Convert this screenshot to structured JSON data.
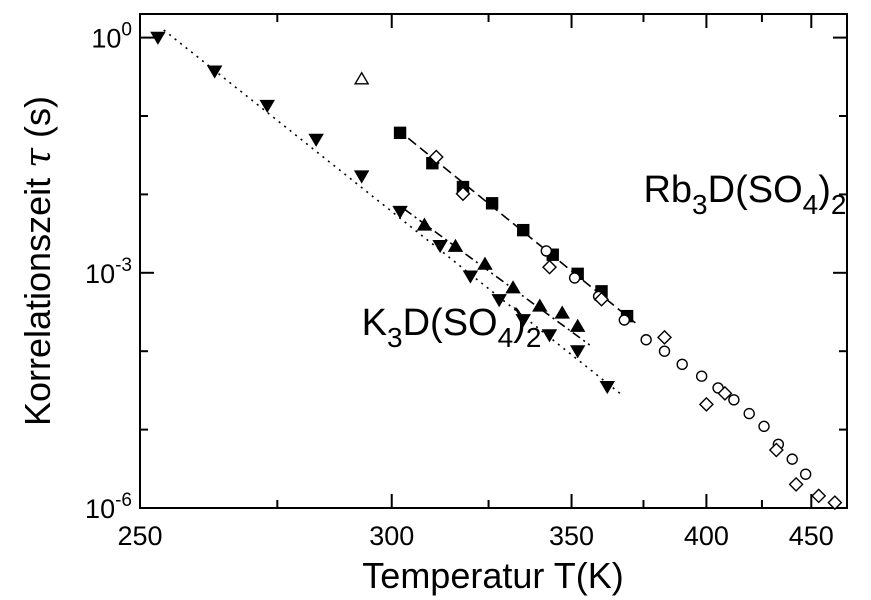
{
  "chart_data": {
    "type": "scatter",
    "x_scale": "reciprocal",
    "y_scale": "log",
    "xlabel": "Temperatur T(K)",
    "ylabel_main": "Korrelationszeit",
    "ylabel_symbol": "τ",
    "ylabel_unit": "(s)",
    "xlim": [
      250,
      470
    ],
    "ylim": [
      1e-06,
      2
    ],
    "xticks_major": [
      250,
      300,
      350,
      400,
      450
    ],
    "xticks_minor": [
      275,
      325,
      375,
      425
    ],
    "yticks_major": [
      {
        "value": 1,
        "base": "10",
        "exp": "0"
      },
      {
        "value": 0.001,
        "base": "10",
        "exp": "-3"
      },
      {
        "value": 1e-06,
        "base": "10",
        "exp": "-6"
      }
    ],
    "yticks_minor": [
      0.1,
      0.01,
      0.0001,
      1e-05
    ],
    "grid": false,
    "annotations": [
      {
        "id": "rb",
        "base": "Rb",
        "sub1": "3",
        "mid": "D(SO",
        "sub2": "4",
        "close": ")",
        "sub3": "2",
        "T": 375,
        "tau": 0.008
      },
      {
        "id": "k",
        "base": "K",
        "sub1": "3",
        "mid": "D(SO",
        "sub2": "4",
        "close": ")",
        "sub3": "2",
        "T": 293,
        "tau": 0.00016
      }
    ],
    "series": [
      {
        "marker": "triangle-down-filled",
        "values": [
          [
            253,
            1.0
          ],
          [
            263,
            0.37
          ],
          [
            273,
            0.135
          ],
          [
            283,
            0.05
          ],
          [
            293,
            0.017
          ],
          [
            302,
            0.006
          ],
          [
            312,
            0.0022
          ],
          [
            320,
            0.0009
          ],
          [
            328,
            0.00045
          ],
          [
            335,
            0.00025
          ],
          [
            343,
            0.00016
          ],
          [
            352,
            0.0001
          ],
          [
            362,
            3.5e-05
          ]
        ]
      },
      {
        "marker": "triangle-up-filled",
        "values": [
          [
            308,
            0.0041
          ],
          [
            316,
            0.0022
          ],
          [
            324,
            0.0013
          ],
          [
            332,
            0.00065
          ],
          [
            340,
            0.00038
          ],
          [
            347,
            0.00031
          ],
          [
            352,
            0.00021
          ]
        ]
      },
      {
        "marker": "triangle-up-open",
        "values": [
          [
            293,
            0.3
          ]
        ]
      },
      {
        "marker": "square-filled",
        "values": [
          [
            302,
            0.061
          ],
          [
            310,
            0.025
          ],
          [
            318,
            0.0124
          ],
          [
            326,
            0.0077
          ],
          [
            335,
            0.0035
          ],
          [
            344,
            0.0017
          ],
          [
            352,
            0.00097
          ],
          [
            360,
            0.00058
          ],
          [
            369,
            0.00028
          ]
        ]
      },
      {
        "marker": "circle-open",
        "values": [
          [
            342,
            0.0019
          ],
          [
            351,
            0.00086
          ],
          [
            359,
            0.0005
          ],
          [
            368,
            0.00025
          ],
          [
            376,
            0.00014
          ],
          [
            383,
            0.0001
          ],
          [
            390,
            6.8e-05
          ],
          [
            398,
            4.8e-05
          ],
          [
            405,
            3.4e-05
          ],
          [
            412,
            2.4e-05
          ],
          [
            419,
            1.6e-05
          ],
          [
            426,
            1.1e-05
          ],
          [
            433,
            6.5e-06
          ],
          [
            440,
            4.2e-06
          ],
          [
            447,
            2.7e-06
          ]
        ]
      },
      {
        "marker": "diamond-open",
        "values": [
          [
            311,
            0.03
          ],
          [
            318,
            0.0102
          ],
          [
            343,
            0.00118
          ],
          [
            360,
            0.00046
          ],
          [
            383,
            0.00015
          ],
          [
            400,
            2.1e-05
          ],
          [
            408,
            2.9e-05
          ],
          [
            432,
            5.5e-06
          ],
          [
            442,
            2e-06
          ],
          [
            454,
            1.43e-06
          ],
          [
            463,
            1.17e-06
          ]
        ]
      }
    ],
    "fit_lines": [
      {
        "style": "dotted",
        "from": [
          254,
          1.25
        ],
        "to": [
          367,
          2.8e-05
        ]
      },
      {
        "style": "dashed",
        "from": [
          304,
          0.052
        ],
        "to": [
          372,
          0.00023
        ]
      },
      {
        "style": "dash-dot",
        "from": [
          303,
          0.0065
        ],
        "to": [
          356,
          0.00012
        ]
      }
    ]
  }
}
